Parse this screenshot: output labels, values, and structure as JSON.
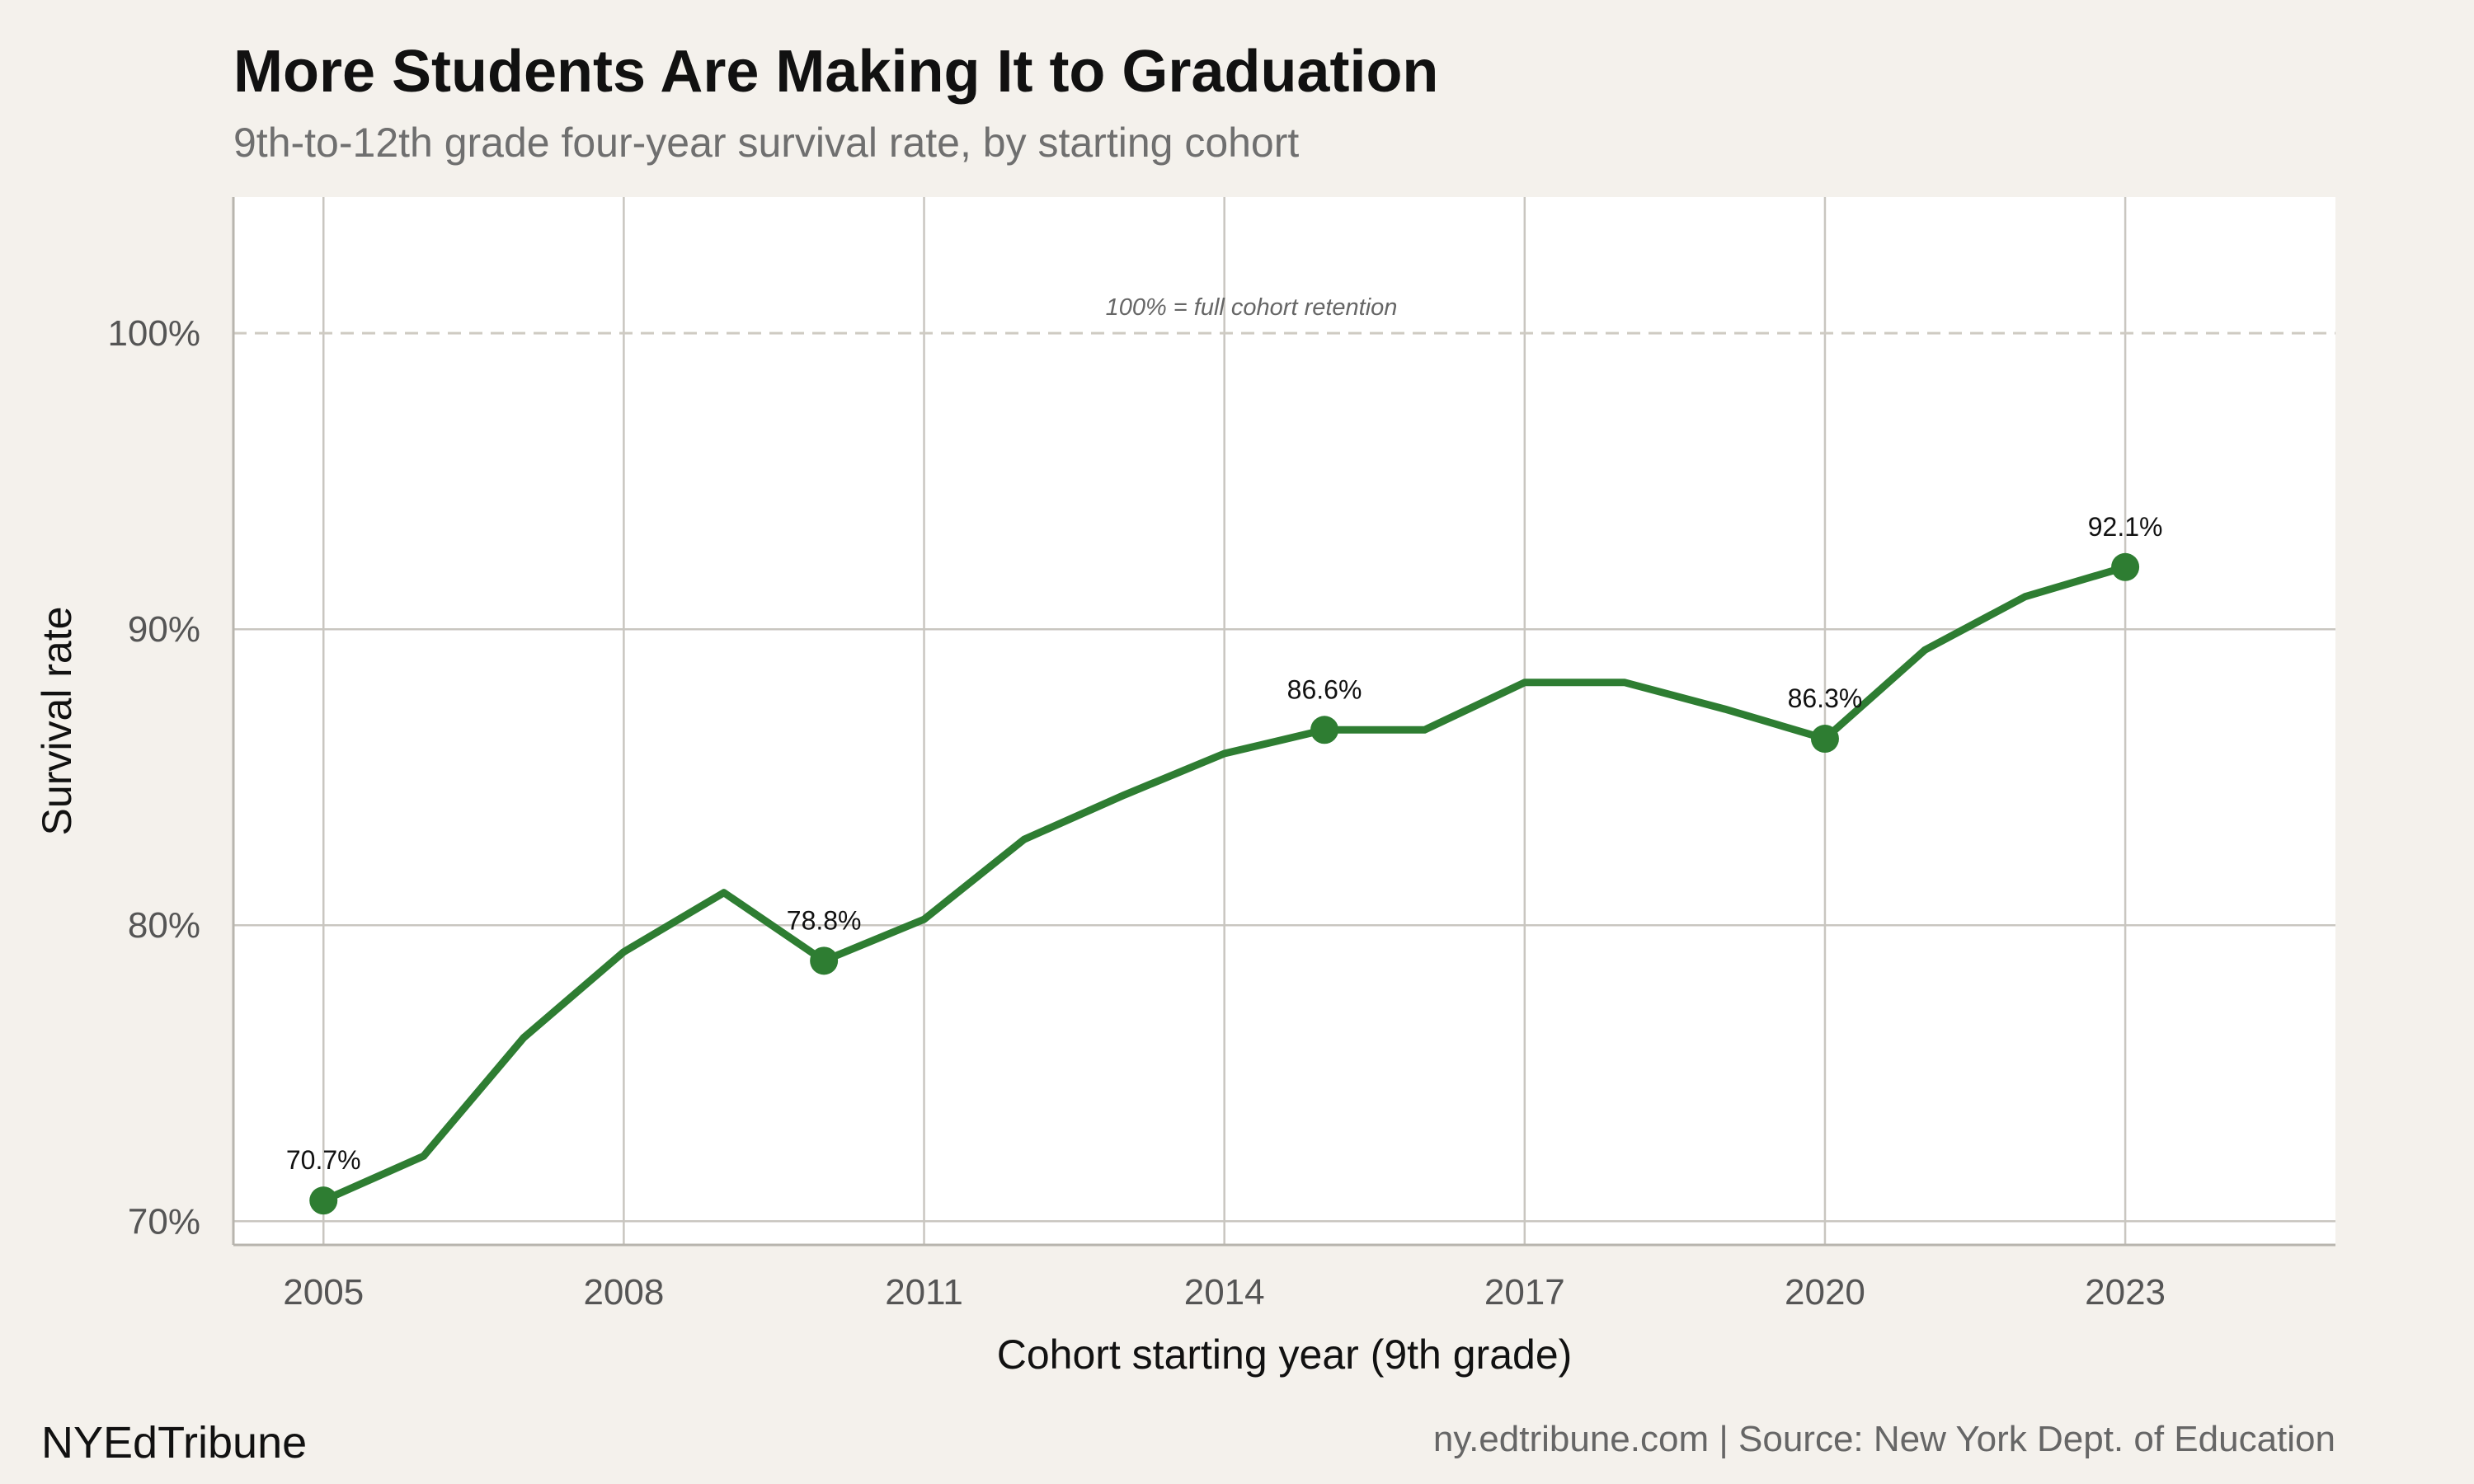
{
  "header": {
    "title": "More Students Are Making It to Graduation",
    "subtitle": "9th-to-12th grade four-year survival rate, by starting cohort"
  },
  "footer": {
    "brand": "NYEdTribune",
    "caption": "ny.edtribune.com | Source: New York Dept. of Education"
  },
  "reference_line": {
    "value": 100,
    "label": "100% = full cohort retention",
    "style": "dashed"
  },
  "colors": {
    "background": "#f4f1ec",
    "panel": "#ffffff",
    "grid": "#c9c6c0",
    "line": "#2e7d32",
    "reference": "#cfcbc3"
  },
  "chart_data": {
    "type": "line",
    "title": "More Students Are Making It to Graduation",
    "subtitle": "9th-to-12th grade four-year survival rate, by starting cohort",
    "xlabel": "Cohort starting year (9th grade)",
    "ylabel": "Survival rate",
    "xlim": [
      2004.1,
      2025.1
    ],
    "ylim": [
      69.2,
      104.6
    ],
    "xticks": [
      2005,
      2008,
      2011,
      2014,
      2017,
      2020,
      2023
    ],
    "xtick_labels": [
      "2005",
      "2008",
      "2011",
      "2014",
      "2017",
      "2020",
      "2023"
    ],
    "yticks": [
      70,
      80,
      90,
      100
    ],
    "ytick_labels": [
      "70%",
      "80%",
      "90%",
      "100%"
    ],
    "grid": true,
    "legend": "none",
    "series": [
      {
        "x": [
          2005,
          2006,
          2007,
          2008,
          2009,
          2010,
          2011,
          2012,
          2013,
          2014,
          2015,
          2016,
          2017,
          2018,
          2019,
          2020,
          2021,
          2022,
          2023
        ],
        "values": [
          70.7,
          72.2,
          76.2,
          79.1,
          81.1,
          78.8,
          80.2,
          82.9,
          84.4,
          85.8,
          86.6,
          86.6,
          88.2,
          88.2,
          87.3,
          86.3,
          89.3,
          91.1,
          92.1
        ]
      }
    ],
    "highlighted_points": [
      {
        "x": 2005,
        "y": 70.7,
        "label": "70.7%"
      },
      {
        "x": 2010,
        "y": 78.8,
        "label": "78.8%"
      },
      {
        "x": 2015,
        "y": 86.6,
        "label": "86.6%"
      },
      {
        "x": 2020,
        "y": 86.3,
        "label": "86.3%"
      },
      {
        "x": 2023,
        "y": 92.1,
        "label": "92.1%"
      }
    ]
  }
}
